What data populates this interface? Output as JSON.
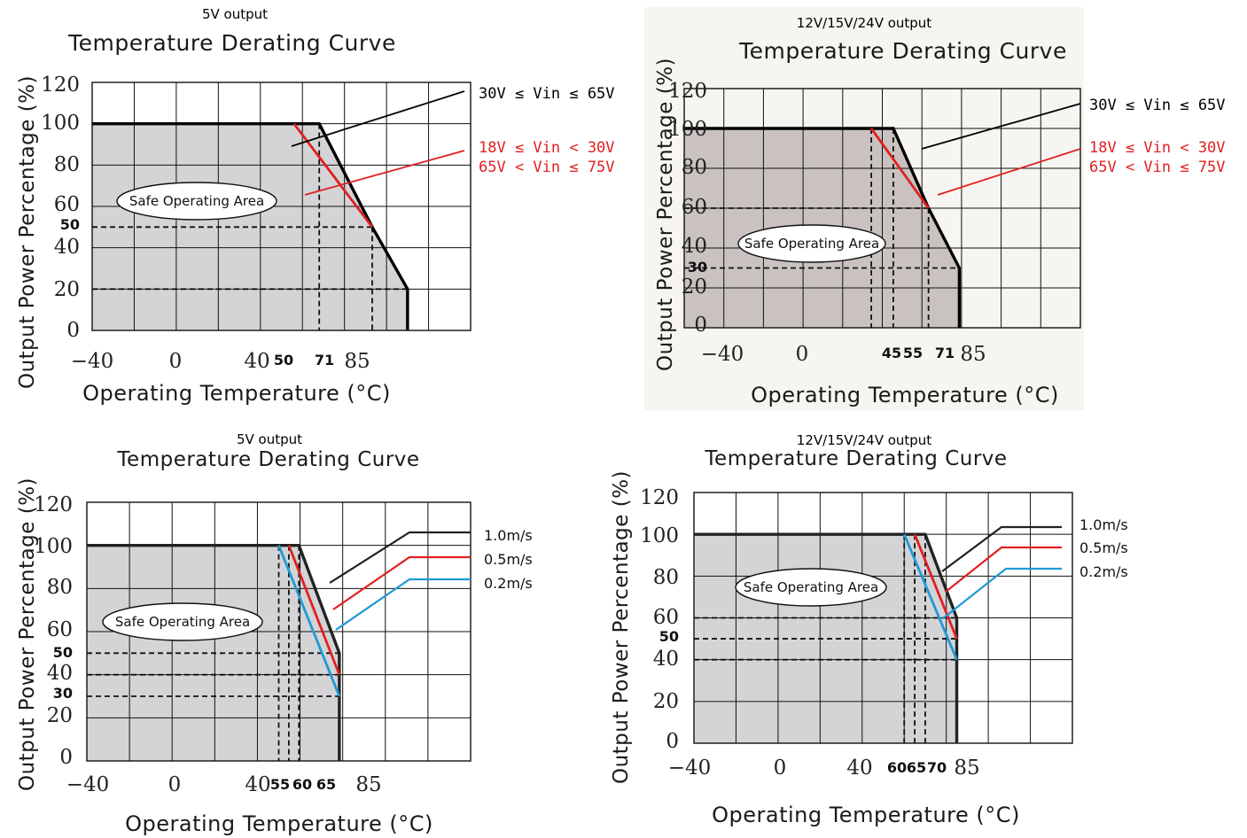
{
  "chart_data": [
    {
      "type": "line",
      "caption": "5V output",
      "title": "Temperature Derating Curve",
      "xlabel": "Operating Temperature (°C)",
      "ylabel": "Output Power Percentage (%)",
      "xlim": [
        -40,
        110
      ],
      "ylim": [
        0,
        120
      ],
      "grid": true,
      "x_ticks": [
        "−40",
        "0",
        "40"
      ],
      "x_ticks_marked": [
        "50",
        "71",
        "85"
      ],
      "y_ticks": [
        "0",
        "20",
        "40",
        "60",
        "80",
        "100",
        "120"
      ],
      "y_ticks_marked": [
        "50"
      ],
      "region_label": "Safe Operating Area",
      "series": [
        {
          "name": "30V ≤ Vin ≤ 65V",
          "color": "#000000",
          "points": [
            [
              -40,
              100
            ],
            [
              50,
              100
            ],
            [
              71,
              50
            ],
            [
              85,
              20
            ],
            [
              85,
              0
            ]
          ]
        },
        {
          "name": "18V ≤ Vin < 30V\n65V < Vin ≤ 75V",
          "color": "#e02020",
          "points": [
            [
              40,
              100
            ],
            [
              71,
              50
            ]
          ]
        }
      ],
      "dashed_guides": [
        [
          50,
          100
        ],
        [
          71,
          50
        ],
        [
          85,
          20
        ]
      ],
      "legend": [
        "30V ≤ Vin ≤ 65V",
        "18V ≤ Vin < 30V",
        "65V < Vin ≤ 75V"
      ]
    },
    {
      "type": "line",
      "caption": "12V/15V/24V output",
      "title": "Temperature Derating Curve",
      "xlabel": "Operating Temperature (°C)",
      "ylabel": "Output Power Percentage (%)",
      "xlim": [
        -40,
        140
      ],
      "ylim": [
        0,
        120
      ],
      "grid": true,
      "x_ticks": [
        "−40",
        "0",
        "85"
      ],
      "x_ticks_marked": [
        "45",
        "55",
        "71"
      ],
      "y_ticks": [
        "0",
        "20",
        "40",
        "60",
        "80",
        "100",
        "120"
      ],
      "y_ticks_marked": [
        "30"
      ],
      "region_label": "Safe Operating Area",
      "series": [
        {
          "name": "30V ≤ Vin ≤ 65V",
          "color": "#000000",
          "points": [
            [
              -40,
              100
            ],
            [
              55,
              100
            ],
            [
              71,
              60
            ],
            [
              85,
              30
            ],
            [
              85,
              0
            ]
          ]
        },
        {
          "name": "18V ≤ Vin < 30V\n65V < Vin ≤ 75V",
          "color": "#e02020",
          "points": [
            [
              45,
              100
            ],
            [
              71,
              60
            ]
          ]
        }
      ],
      "dashed_guides": [
        [
          45,
          100
        ],
        [
          55,
          100
        ],
        [
          71,
          60
        ],
        [
          85,
          30
        ]
      ],
      "legend": [
        "30V ≤ Vin ≤ 65V",
        "18V ≤ Vin < 30V",
        "65V < Vin ≤ 75V"
      ]
    },
    {
      "type": "line",
      "caption": "5V output",
      "title": "Temperature Derating Curve",
      "xlabel": "Operating Temperature (°C)",
      "ylabel": "Output Power Percentage (%)",
      "xlim": [
        -40,
        150
      ],
      "ylim": [
        0,
        120
      ],
      "grid": true,
      "x_ticks": [
        "−40",
        "0",
        "40",
        "85"
      ],
      "x_ticks_marked": [
        "55",
        "60",
        "65"
      ],
      "y_ticks": [
        "0",
        "20",
        "40",
        "60",
        "80",
        "100",
        "120"
      ],
      "y_ticks_marked": [
        "30",
        "50"
      ],
      "region_label": "Safe Operating Area",
      "series": [
        {
          "name": "1.0m/s",
          "color": "#222222",
          "points": [
            [
              -40,
              100
            ],
            [
              65,
              100
            ],
            [
              85,
              50
            ],
            [
              85,
              0
            ]
          ]
        },
        {
          "name": "0.5m/s",
          "color": "#e02020",
          "points": [
            [
              60,
              100
            ],
            [
              85,
              40
            ]
          ]
        },
        {
          "name": "0.2m/s",
          "color": "#1f9ad6",
          "points": [
            [
              55,
              100
            ],
            [
              85,
              30
            ]
          ]
        }
      ],
      "dashed_guides": [
        [
          55,
          100
        ],
        [
          60,
          100
        ],
        [
          65,
          100
        ],
        [
          85,
          50
        ],
        [
          85,
          40
        ],
        [
          85,
          30
        ]
      ],
      "legend": [
        "1.0m/s",
        "0.5m/s",
        "0.2m/s"
      ]
    },
    {
      "type": "line",
      "caption": "12V/15V/24V output",
      "title": "Temperature Derating Curve",
      "xlabel": "Operating Temperature (°C)",
      "ylabel": "Output Power Percentage (%)",
      "xlim": [
        -40,
        140
      ],
      "ylim": [
        0,
        120
      ],
      "grid": true,
      "x_ticks": [
        "−40",
        "0",
        "40",
        "85"
      ],
      "x_ticks_marked": [
        "60",
        "65",
        "70"
      ],
      "y_ticks": [
        "0",
        "20",
        "40",
        "60",
        "80",
        "100",
        "120"
      ],
      "y_ticks_marked": [
        "50"
      ],
      "region_label": "Safe Operating Area",
      "series": [
        {
          "name": "1.0m/s",
          "color": "#222222",
          "points": [
            [
              -40,
              100
            ],
            [
              70,
              100
            ],
            [
              85,
              60
            ],
            [
              85,
              0
            ]
          ]
        },
        {
          "name": "0.5m/s",
          "color": "#e02020",
          "points": [
            [
              65,
              100
            ],
            [
              85,
              50
            ]
          ]
        },
        {
          "name": "0.2m/s",
          "color": "#1f9ad6",
          "points": [
            [
              60,
              100
            ],
            [
              85,
              40
            ]
          ]
        }
      ],
      "dashed_guides": [
        [
          60,
          100
        ],
        [
          65,
          100
        ],
        [
          70,
          100
        ],
        [
          85,
          60
        ],
        [
          85,
          50
        ],
        [
          85,
          40
        ]
      ],
      "legend": [
        "1.0m/s",
        "0.5m/s",
        "0.2m/s"
      ]
    }
  ]
}
